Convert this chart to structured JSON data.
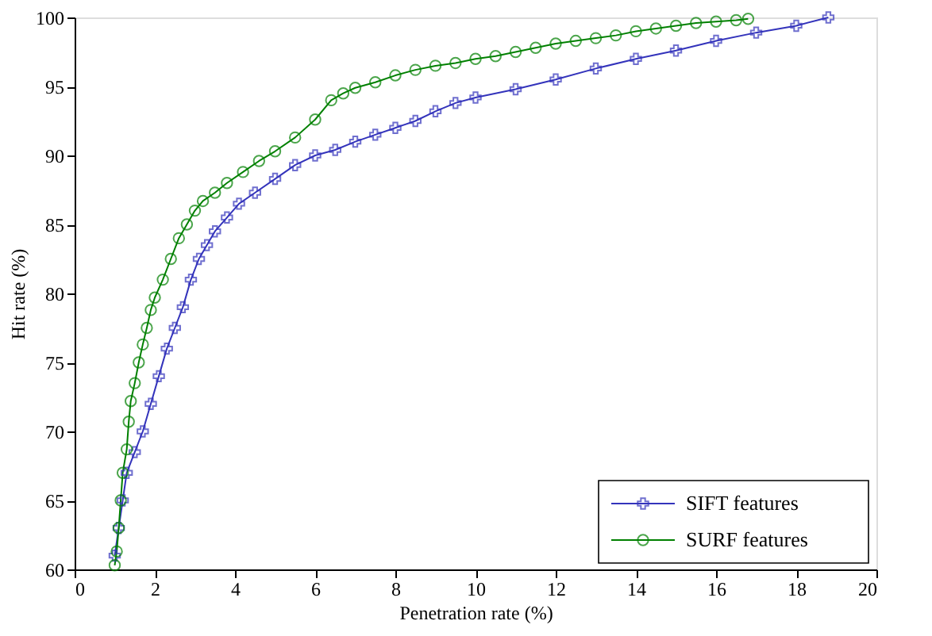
{
  "chart_data": {
    "type": "line",
    "xlabel": "Penetration rate (%)",
    "ylabel": "Hit rate (%)",
    "xlim": [
      0,
      20
    ],
    "ylim": [
      60,
      100
    ],
    "xticks": [
      0,
      2,
      4,
      6,
      8,
      10,
      12,
      14,
      16,
      18,
      20
    ],
    "yticks": [
      60,
      65,
      70,
      75,
      80,
      85,
      90,
      95,
      100
    ],
    "grid": false,
    "legend": "bottom right",
    "series": [
      {
        "name": "SIFT features",
        "color": "#3333bb",
        "marker": "cross",
        "x": [
          1.0,
          1.1,
          1.2,
          1.3,
          1.5,
          1.7,
          1.9,
          2.1,
          2.3,
          2.5,
          2.7,
          2.9,
          3.1,
          3.3,
          3.5,
          3.8,
          4.1,
          4.5,
          5.0,
          5.5,
          6.0,
          6.5,
          7.0,
          7.5,
          8.0,
          8.5,
          9.0,
          9.5,
          10.0,
          11,
          12,
          13,
          14,
          15,
          16,
          17,
          18,
          18.8
        ],
        "values": [
          61,
          63,
          65,
          67,
          68.5,
          70,
          72,
          74,
          76,
          77.5,
          79,
          81,
          82.5,
          83.5,
          84.5,
          85.5,
          86.5,
          87.3,
          88.3,
          89.3,
          90,
          90.4,
          91,
          91.5,
          92,
          92.5,
          93.2,
          93.8,
          94.2,
          94.8,
          95.5,
          96.3,
          97,
          97.6,
          98.3,
          98.9,
          99.4,
          100
        ]
      },
      {
        "name": "SURF features",
        "color": "#008000",
        "marker": "circle",
        "x": [
          1.0,
          1.05,
          1.1,
          1.15,
          1.2,
          1.3,
          1.35,
          1.4,
          1.5,
          1.6,
          1.7,
          1.8,
          1.9,
          2.0,
          2.2,
          2.4,
          2.6,
          2.8,
          3.0,
          3.2,
          3.5,
          3.8,
          4.2,
          4.6,
          5.0,
          5.5,
          6.0,
          6.4,
          6.7,
          7.0,
          7.5,
          8.0,
          8.5,
          9.0,
          9.5,
          10,
          10.5,
          11,
          11.5,
          12,
          12.5,
          13,
          13.5,
          14,
          14.5,
          15,
          15.5,
          16,
          16.5,
          16.8
        ],
        "values": [
          60.3,
          61.3,
          63,
          65,
          67,
          68.7,
          70.7,
          72.2,
          73.5,
          75,
          76.3,
          77.5,
          78.8,
          79.7,
          81,
          82.5,
          84,
          85,
          86,
          86.7,
          87.3,
          88,
          88.8,
          89.6,
          90.3,
          91.3,
          92.6,
          94,
          94.5,
          94.9,
          95.3,
          95.8,
          96.2,
          96.5,
          96.7,
          97,
          97.2,
          97.5,
          97.8,
          98.1,
          98.3,
          98.5,
          98.7,
          99,
          99.2,
          99.4,
          99.6,
          99.7,
          99.8,
          99.9
        ]
      }
    ]
  }
}
